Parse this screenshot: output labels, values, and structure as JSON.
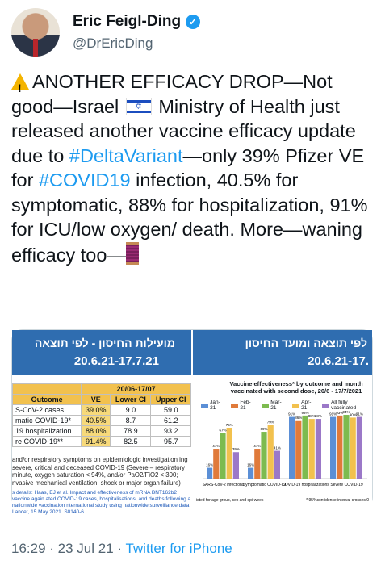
{
  "author": {
    "name": "Eric Feigl-Ding",
    "handle": "@DrEricDing"
  },
  "tweet": {
    "p1": "ANOTHER EFFICACY DROP—Not good—Israel",
    "p2": "Ministry of Health just released another vaccine efficacy update due to",
    "tag1": "#DeltaVariant",
    "p3": "—only 39% Pfizer VE for",
    "tag2": "#COVID19",
    "p4": "infection, 40.5% for symptomatic, 88% for hospitalization, 91% for ICU/low oxygen/ death. More—waning efficacy too—"
  },
  "left": {
    "title": "מועילות החיסון - לפי תוצאה",
    "dates": "20.6.21-17.7.21",
    "period": "20/06-17/07",
    "headers": [
      "Outcome",
      "VE",
      "Lower CI",
      "Upper CI"
    ],
    "rows": [
      {
        "outcome": "S-CoV-2 cases",
        "ve": "39.0%",
        "lo": "9.0",
        "hi": "59.0"
      },
      {
        "outcome": "matic COVID-19*",
        "ve": "40.5%",
        "lo": "8.7",
        "hi": "61.2"
      },
      {
        "outcome": "19 hospitalization",
        "ve": "88.0%",
        "lo": "78.9",
        "hi": "93.2"
      },
      {
        "outcome": "re COVID-19**",
        "ve": "91.4%",
        "lo": "82.5",
        "hi": "95.7"
      }
    ],
    "notes": "and/or respiratory symptoms on epidemiologic investigation ing severe, critical and deceased COVID-19 (Severe – respiratory minute, oxygen saturation < 94%, and/or PaO2/FiO2 < 300; nvasive mechanical ventilation, shock or major organ failure)",
    "citation": "s details: Haas, EJ et al. Impact and effectiveness of mRNA BNT162b2 vaccine again ated COVID-19 cases, hospitalisations, and deaths following a nationwide vaccination nternational study using nationwide surveillance data. Lancet, 15 May 2021. S0140-6"
  },
  "right": {
    "title": "לפי תוצאה ומועד החיסון",
    "dates": "20.6.21-17.",
    "footer_left": "isted for age group, sex and epi-week",
    "footer_right": "* 95%confidence interval crosses 0"
  },
  "chart_data": {
    "type": "bar",
    "title": "Vaccine effectiveness* by outcome and month vaccinated with second dose, 20/6 - 17/7/2021",
    "categories": [
      "SARS-CoV-2 infections",
      "Symptomatic COVID-19",
      "COVID-19 hospitalizations",
      "Severe COVID-19"
    ],
    "series": [
      {
        "name": "Jan-21",
        "color": "#5b8fd6",
        "values": [
          16,
          16,
          91,
          91
        ]
      },
      {
        "name": "Feb-21",
        "color": "#e07a3a",
        "values": [
          44,
          44,
          86,
          93
        ]
      },
      {
        "name": "Mar-21",
        "color": "#7dbb4f",
        "values": [
          67,
          69,
          93,
          94
        ]
      },
      {
        "name": "Apr-21",
        "color": "#f2c14e",
        "values": [
          75,
          79,
          88,
          90
        ]
      },
      {
        "name": "All fully vaccinated",
        "color": "#9b78c8",
        "values": [
          39,
          41,
          88,
          91
        ]
      }
    ],
    "ylim": [
      0,
      100
    ]
  },
  "footer": {
    "time": "16:29 · 23 Jul 21 · ",
    "source": "Twitter for iPhone"
  }
}
